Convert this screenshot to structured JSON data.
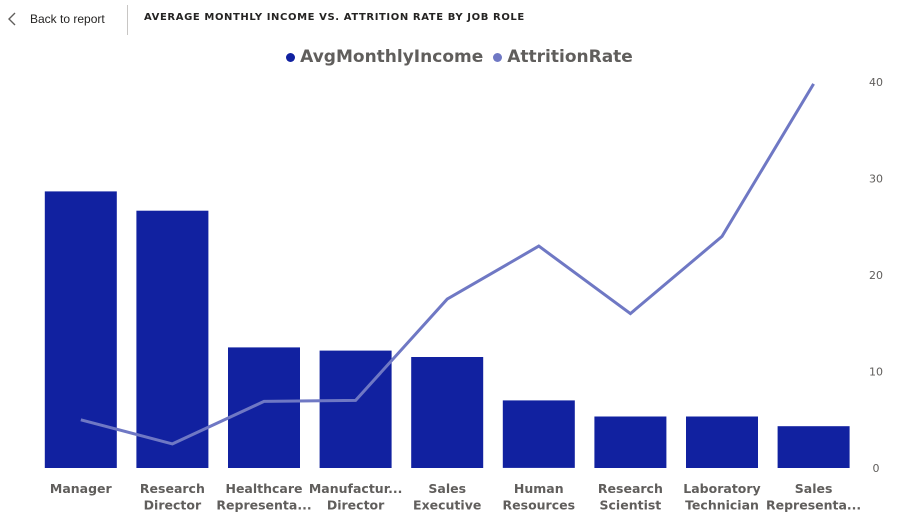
{
  "header": {
    "back_label": "Back to report",
    "title": "AVERAGE MONTHLY INCOME VS. ATTRITION RATE BY JOB ROLE"
  },
  "colors": {
    "bar": "#1121a0",
    "line": "#6f78c4",
    "axis_text": "#605e5c"
  },
  "chart_data": {
    "type": "bar",
    "title": "AVERAGE MONTHLY INCOME VS. ATTRITION RATE BY JOB ROLE",
    "categories": [
      [
        "Manager"
      ],
      [
        "Research",
        "Director"
      ],
      [
        "Healthcare",
        "Representa..."
      ],
      [
        "Manufactur...",
        "Director"
      ],
      [
        "Sales",
        "Executive"
      ],
      [
        "Human",
        "Resources"
      ],
      [
        "Research",
        "Scientist"
      ],
      [
        "Laboratory",
        "Technician"
      ],
      [
        "Sales",
        "Representa..."
      ]
    ],
    "series": [
      {
        "name": "AvgMonthlyIncome",
        "type": "bar",
        "axis": "left",
        "values": [
          17200,
          16000,
          7500,
          7300,
          6900,
          4200,
          3200,
          3200,
          2600
        ]
      },
      {
        "name": "AttritionRate",
        "type": "line",
        "axis": "right",
        "values": [
          5,
          2.5,
          6.9,
          7,
          17.5,
          23,
          16,
          24,
          39.8
        ]
      }
    ],
    "left_axis": {
      "visible": false,
      "range": [
        0,
        24000
      ]
    },
    "right_axis": {
      "visible": true,
      "range": [
        0,
        40
      ],
      "ticks": [
        0,
        10,
        20,
        30,
        40
      ]
    },
    "legend": {
      "position": "top-center"
    },
    "grid": false
  }
}
